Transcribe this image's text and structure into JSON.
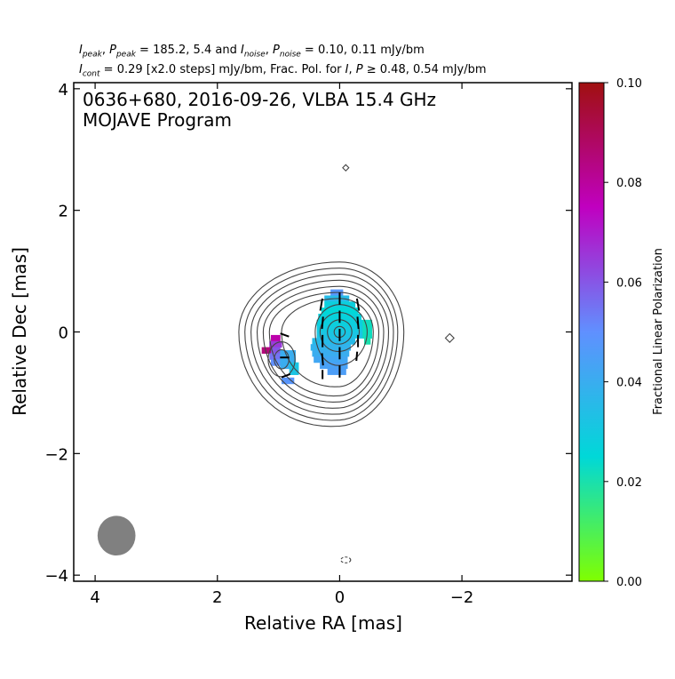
{
  "header": {
    "line1_a": "I",
    "line1_a_sub": "peak",
    "line1_b": ", ",
    "line1_c": "P",
    "line1_c_sub": "peak",
    "line1_d": " = 185.2, 5.4 and ",
    "line1_e": "I",
    "line1_e_sub": "noise",
    "line1_f": ", ",
    "line1_g": "P",
    "line1_g_sub": "noise",
    "line1_h": " = 0.10, 0.11 mJy/bm",
    "line2_a": "I",
    "line2_a_sub": "cont",
    "line2_b": " = 0.29 [x2.0 steps] mJy/bm, Frac. Pol. for ",
    "line2_c": "I",
    "line2_d": ", ",
    "line2_e": "P",
    "line2_f": " ≥ 0.48, 0.54 mJy/bm"
  },
  "chart_data": {
    "type": "heatmap",
    "title_line1": "0636+680, 2016-09-26, VLBA 15.4 GHz",
    "title_line2": "MOJAVE Program",
    "xlabel": "Relative RA [mas]",
    "ylabel": "Relative Dec [mas]",
    "xlim": [
      4.35,
      -3.8
    ],
    "ylim": [
      -4.1,
      4.1
    ],
    "xticks": [
      4,
      2,
      0,
      -2
    ],
    "xtick_labels": [
      "4",
      "2",
      "0",
      "−2"
    ],
    "yticks": [
      4,
      2,
      0,
      -2,
      -4
    ],
    "ytick_labels": [
      "4",
      "2",
      "0",
      "−2",
      "−4"
    ],
    "grid": false,
    "colorbar": {
      "label": "Fractional Linear Polarization",
      "range": [
        0.0,
        0.1
      ],
      "ticks": [
        0.0,
        0.02,
        0.04,
        0.06,
        0.08,
        0.1
      ],
      "tick_labels": [
        "0.00",
        "0.02",
        "0.04",
        "0.06",
        "0.08",
        "0.10"
      ],
      "colormap": [
        "#80ff00",
        "#00d8d8",
        "#6090ff",
        "#c000c0",
        "#a01010"
      ]
    },
    "beam": {
      "ra": 3.65,
      "dec": -3.35,
      "major_mas": 0.65,
      "minor_mas": 0.62,
      "pa_deg": 0,
      "color": "#808080"
    },
    "contours": {
      "color": "#444444",
      "base_mJy": 0.29,
      "step_factor": 2.0,
      "core": {
        "ra": 0.0,
        "dec": 0.0
      },
      "levels": [
        {
          "ra_east": 1.65,
          "ra_west": -1.05,
          "dec_north": 1.15,
          "dec_south": -1.55
        },
        {
          "ra_east": 1.55,
          "ra_west": -0.95,
          "dec_north": 1.05,
          "dec_south": -1.45
        },
        {
          "ra_east": 1.45,
          "ra_west": -0.88,
          "dec_north": 0.95,
          "dec_south": -1.35
        },
        {
          "ra_east": 1.35,
          "ra_west": -0.8,
          "dec_north": 0.85,
          "dec_south": -1.25
        },
        {
          "ra_east": 1.25,
          "ra_west": -0.72,
          "dec_north": 0.75,
          "dec_south": -1.15
        },
        {
          "ra_east": 1.15,
          "ra_west": -0.64,
          "dec_north": 0.65,
          "dec_south": -1.05
        },
        {
          "ra_east": 0.95,
          "ra_west": -0.55,
          "dec_north": 0.55,
          "dec_south": -0.9
        },
        {
          "ra_east": 0.4,
          "ra_west": -0.45,
          "dec_north": 0.45,
          "dec_south": -0.55
        },
        {
          "ra_east": 0.32,
          "ra_west": -0.32,
          "dec_north": 0.32,
          "dec_south": -0.32
        },
        {
          "ra_east": 0.2,
          "ra_west": -0.2,
          "dec_north": 0.2,
          "dec_south": -0.2
        },
        {
          "ra_east": 0.09,
          "ra_west": -0.09,
          "dec_north": 0.09,
          "dec_south": -0.09
        }
      ],
      "secondary_component": {
        "ra": 0.95,
        "dec": -0.45,
        "radii": [
          0.22,
          0.12
        ]
      },
      "isolated_blobs": [
        {
          "ra": -0.1,
          "dec": 2.7,
          "size": 0.05,
          "shape": "diamond",
          "dashed": false
        },
        {
          "ra": -1.8,
          "dec": -0.1,
          "size": 0.07,
          "shape": "diamond",
          "dashed": false
        },
        {
          "ra": -0.1,
          "dec": -3.75,
          "size": 0.08,
          "shape": "ellipse",
          "dashed": true
        }
      ]
    },
    "frac_pol_pixels": [
      {
        "ra": 0.05,
        "dec": 0.65,
        "w": 0.2,
        "h": 0.1,
        "v": 0.048
      },
      {
        "ra": 0.05,
        "dec": 0.55,
        "w": 0.4,
        "h": 0.1,
        "v": 0.035
      },
      {
        "ra": 0.0,
        "dec": 0.45,
        "w": 0.5,
        "h": 0.1,
        "v": 0.028
      },
      {
        "ra": 0.0,
        "dec": 0.35,
        "w": 0.6,
        "h": 0.1,
        "v": 0.025
      },
      {
        "ra": 0.0,
        "dec": 0.25,
        "w": 0.7,
        "h": 0.1,
        "v": 0.027
      },
      {
        "ra": 0.0,
        "dec": 0.15,
        "w": 0.75,
        "h": 0.1,
        "v": 0.028
      },
      {
        "ra": 0.0,
        "dec": 0.05,
        "w": 0.75,
        "h": 0.1,
        "v": 0.03
      },
      {
        "ra": 0.0,
        "dec": -0.05,
        "w": 0.75,
        "h": 0.1,
        "v": 0.032
      },
      {
        "ra": 0.1,
        "dec": -0.15,
        "w": 0.7,
        "h": 0.1,
        "v": 0.035
      },
      {
        "ra": 0.15,
        "dec": -0.25,
        "w": 0.65,
        "h": 0.1,
        "v": 0.038
      },
      {
        "ra": 0.15,
        "dec": -0.35,
        "w": 0.6,
        "h": 0.1,
        "v": 0.04
      },
      {
        "ra": 0.15,
        "dec": -0.45,
        "w": 0.55,
        "h": 0.1,
        "v": 0.042
      },
      {
        "ra": 0.1,
        "dec": -0.55,
        "w": 0.45,
        "h": 0.1,
        "v": 0.044
      },
      {
        "ra": 0.05,
        "dec": -0.65,
        "w": 0.3,
        "h": 0.1,
        "v": 0.045
      },
      {
        "ra": -0.45,
        "dec": 0.05,
        "w": 0.15,
        "h": 0.3,
        "v": 0.022
      },
      {
        "ra": -0.45,
        "dec": -0.15,
        "w": 0.1,
        "h": 0.1,
        "v": 0.02
      },
      {
        "ra": 1.05,
        "dec": -0.1,
        "w": 0.15,
        "h": 0.1,
        "v": 0.078
      },
      {
        "ra": 1.05,
        "dec": -0.2,
        "w": 0.2,
        "h": 0.1,
        "v": 0.065
      },
      {
        "ra": 1.2,
        "dec": -0.3,
        "w": 0.15,
        "h": 0.1,
        "v": 0.085
      },
      {
        "ra": 1.05,
        "dec": -0.3,
        "w": 0.15,
        "h": 0.1,
        "v": 0.06
      },
      {
        "ra": 1.05,
        "dec": -0.4,
        "w": 0.2,
        "h": 0.1,
        "v": 0.055
      },
      {
        "ra": 1.05,
        "dec": -0.5,
        "w": 0.15,
        "h": 0.1,
        "v": 0.05
      },
      {
        "ra": 0.85,
        "dec": -0.45,
        "w": 0.25,
        "h": 0.3,
        "v": 0.04
      },
      {
        "ra": 0.75,
        "dec": -0.6,
        "w": 0.15,
        "h": 0.2,
        "v": 0.032
      },
      {
        "ra": 0.85,
        "dec": -0.8,
        "w": 0.2,
        "h": 0.1,
        "v": 0.048
      }
    ],
    "evpa_vectors": [
      {
        "ra": 0.3,
        "dec": 0.45,
        "len": 0.2,
        "angle_deg": 100
      },
      {
        "ra": 0.28,
        "dec": 0.15,
        "len": 0.2,
        "angle_deg": 95
      },
      {
        "ra": 0.28,
        "dec": -0.15,
        "len": 0.2,
        "angle_deg": 90
      },
      {
        "ra": 0.28,
        "dec": -0.45,
        "len": 0.2,
        "angle_deg": 85
      },
      {
        "ra": 0.28,
        "dec": -0.7,
        "len": 0.15,
        "angle_deg": 90
      },
      {
        "ra": 0.0,
        "dec": 0.55,
        "len": 0.2,
        "angle_deg": 90
      },
      {
        "ra": 0.0,
        "dec": 0.25,
        "len": 0.2,
        "angle_deg": 90
      },
      {
        "ra": 0.0,
        "dec": -0.05,
        "len": 0.2,
        "angle_deg": 90
      },
      {
        "ra": 0.0,
        "dec": -0.35,
        "len": 0.2,
        "angle_deg": 90
      },
      {
        "ra": 0.0,
        "dec": -0.65,
        "len": 0.2,
        "angle_deg": 90
      },
      {
        "ra": -0.3,
        "dec": 0.45,
        "len": 0.2,
        "angle_deg": 80
      },
      {
        "ra": -0.3,
        "dec": 0.15,
        "len": 0.2,
        "angle_deg": 85
      },
      {
        "ra": -0.3,
        "dec": -0.15,
        "len": 0.2,
        "angle_deg": 90
      },
      {
        "ra": -0.28,
        "dec": -0.4,
        "len": 0.15,
        "angle_deg": 95
      },
      {
        "ra": 0.9,
        "dec": -0.05,
        "len": 0.15,
        "angle_deg": 20
      },
      {
        "ra": 0.9,
        "dec": -0.42,
        "len": 0.15,
        "angle_deg": 0
      },
      {
        "ra": 0.88,
        "dec": -0.72,
        "len": 0.15,
        "angle_deg": 160
      }
    ]
  }
}
